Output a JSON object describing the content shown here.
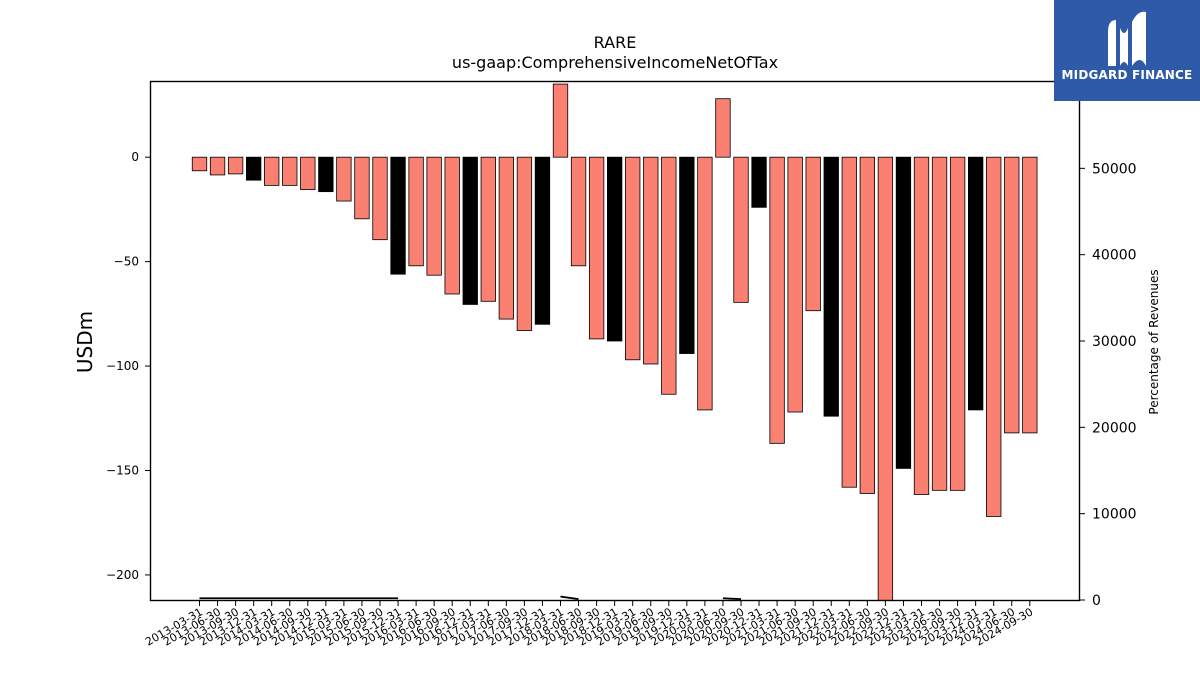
{
  "chart_data": {
    "type": "bar",
    "title": "RARE",
    "subtitle": "us-gaap:ComprehensiveIncomeNetOfTax",
    "ylabel": "USDm",
    "y2label": "Percentage of Revenues",
    "ylim": [
      -212,
      36
    ],
    "y2lim": [
      0,
      60000
    ],
    "y_ticks": [
      0,
      -50,
      -100,
      -150,
      -200
    ],
    "y_tick_labels": [
      "0",
      "−50",
      "−100",
      "−150",
      "−200"
    ],
    "y2_ticks": [
      0,
      10000,
      20000,
      30000,
      40000,
      50000,
      60000
    ],
    "y2_tick_labels": [
      "0",
      "10000",
      "20000",
      "30000",
      "40000",
      "50000",
      "60000"
    ],
    "categories": [
      "2013-03-31",
      "2013-06-30",
      "2013-09-30",
      "2013-12-31",
      "2014-03-31",
      "2014-06-30",
      "2014-09-30",
      "2014-12-31",
      "2015-03-31",
      "2015-06-30",
      "2015-09-30",
      "2015-12-31",
      "2016-03-31",
      "2016-06-30",
      "2016-09-30",
      "2016-12-31",
      "2017-03-31",
      "2017-06-30",
      "2017-09-30",
      "2017-12-31",
      "2018-03-31",
      "2018-06-30",
      "2018-09-30",
      "2018-12-31",
      "2019-03-31",
      "2019-06-30",
      "2019-09-30",
      "2019-12-31",
      "2020-03-31",
      "2020-06-30",
      "2020-09-30",
      "2020-12-31",
      "2021-03-31",
      "2021-06-30",
      "2021-09-30",
      "2021-12-31",
      "2022-03-31",
      "2022-06-30",
      "2022-09-30",
      "2022-12-31",
      "2023-03-31",
      "2023-06-30",
      "2023-09-30",
      "2023-12-31",
      "2024-03-31",
      "2024-06-30",
      "2024-09-30"
    ],
    "values": [
      -6.5,
      -8.5,
      -8,
      -11,
      -13.5,
      -13.5,
      -15.5,
      -16.5,
      -21,
      -29.5,
      -39.5,
      -56,
      -52,
      -56.5,
      -65.5,
      -70.5,
      -69,
      -77.5,
      -83,
      -80,
      35,
      -52,
      -87,
      -88,
      -97,
      -99,
      -113.5,
      -94,
      -121,
      28,
      -69.5,
      -24,
      -137,
      -122,
      -73.5,
      -124,
      -158,
      -161,
      -215,
      -149,
      -161.5,
      -159.5,
      -159.5,
      -121,
      -172,
      -132,
      -132
    ],
    "highlight_fourth_quarter": true,
    "colors": {
      "bar": "#fa8072",
      "bar_q4": "#000000",
      "edge": "#000000",
      "line": "#000000"
    },
    "secondary_line": {
      "name": "Percentage of Revenues",
      "values": [
        200,
        200,
        200,
        200,
        200,
        200,
        200,
        200,
        200,
        200,
        200,
        200,
        null,
        null,
        null,
        null,
        200,
        null,
        null,
        null,
        400,
        100,
        null,
        null,
        null,
        null,
        null,
        null,
        null,
        200,
        100,
        null,
        null,
        null,
        null,
        null,
        null,
        null,
        null,
        null,
        null,
        null,
        null,
        null,
        null,
        null,
        null
      ]
    }
  },
  "logo": {
    "name": "MIDGARD FINANCE",
    "color": "#2e5aa8"
  }
}
